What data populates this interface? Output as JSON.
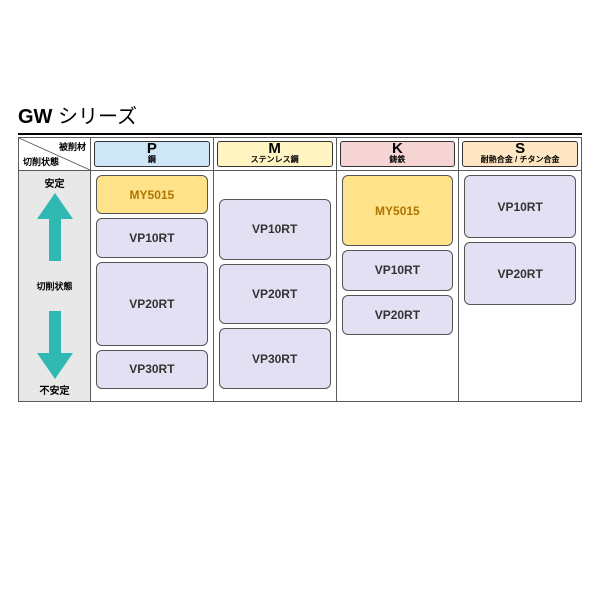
{
  "title": {
    "bold": "GW",
    "rest": " シリーズ"
  },
  "corner": {
    "top": "被削材",
    "bottom": "切削状態"
  },
  "side": {
    "top": "安定",
    "mid": "切削状態",
    "bottom": "不安定",
    "arrow_color": "#2fb9b2",
    "bg": "#e8e8e8"
  },
  "colors": {
    "chip_yellow_bg": "#ffe38a",
    "chip_yellow_text": "#b07400",
    "chip_purple_bg": "#e4e0f4",
    "chip_purple_text": "#333333"
  },
  "columns": [
    {
      "letter": "P",
      "sub": "鋼",
      "head_bg": "#cfe6f7",
      "chips": [
        {
          "label": "MY5015",
          "style": "yellow",
          "flex": 1
        },
        {
          "label": "VP10RT",
          "style": "purple",
          "flex": 1
        },
        {
          "label": "VP20RT",
          "style": "purple",
          "flex": 2.2
        },
        {
          "label": "VP30RT",
          "style": "purple",
          "flex": 1
        }
      ]
    },
    {
      "letter": "M",
      "sub": "ステンレス鋼",
      "head_bg": "#fff4c2",
      "top_gap": 20,
      "chips": [
        {
          "label": "VP10RT",
          "style": "purple",
          "flex": 1.6
        },
        {
          "label": "VP20RT",
          "style": "purple",
          "flex": 1.6
        },
        {
          "label": "VP30RT",
          "style": "purple",
          "flex": 1.6
        }
      ]
    },
    {
      "letter": "K",
      "sub": "鋳鉄",
      "head_bg": "#f7d4d4",
      "chips": [
        {
          "label": "MY5015",
          "style": "yellow",
          "flex": 1.8
        },
        {
          "label": "VP10RT",
          "style": "purple",
          "flex": 1
        },
        {
          "label": "VP20RT",
          "style": "purple",
          "flex": 1
        }
      ],
      "bottom_gap": 50
    },
    {
      "letter": "S",
      "sub": "耐熱合金 / チタン合金",
      "head_bg": "#ffe6c2",
      "chips": [
        {
          "label": "VP10RT",
          "style": "purple",
          "flex": 1.6
        },
        {
          "label": "VP20RT",
          "style": "purple",
          "flex": 1.6
        }
      ],
      "bottom_gap": 80
    }
  ]
}
